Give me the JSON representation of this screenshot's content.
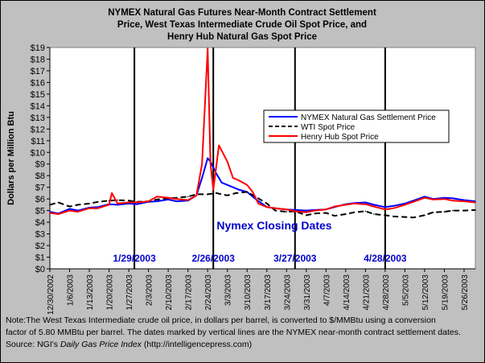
{
  "title_lines": [
    "NYMEX Natural Gas Futures Near-Month Contract Settlement",
    "Price, West Texas Intermediate Crude Oil Spot Price, and",
    "Henry Hub Natural Gas Spot Price"
  ],
  "note": {
    "line1": "Note:The West Texas Intermediate crude oil price, in dollars per barrel,  is converted to $/MMBtu using a conversion",
    "line2": "factor of 5.80 MMBtu per barrel.  The dates marked by vertical lines are the NYMEX near-month contract settlement dates.",
    "line3_prefix": "Source:  NGI's ",
    "line3_italic": "Daily Gas Price Index",
    "line3_suffix": " (http://intelligencepress.com)"
  },
  "colors": {
    "background": "#c0c0c0",
    "plot_bg": "#ffffff",
    "nymex": "#0000ff",
    "wti": "#000000",
    "henry": "#ff0000",
    "annotation": "#0000cc"
  },
  "chart_data": {
    "type": "line",
    "title": "NYMEX Natural Gas Futures Near-Month Contract Settlement Price, West Texas Intermediate Crude Oil Spot Price, and Henry Hub Natural Gas Spot Price",
    "ylabel": "Dollars per Million Btu",
    "xlabel": "",
    "ylim": [
      0,
      19
    ],
    "ytick_labels": [
      "$0",
      "$1",
      "$2",
      "$3",
      "$4",
      "$5",
      "$6",
      "$7",
      "$8",
      "$9",
      "$10",
      "$11",
      "$12",
      "$13",
      "$14",
      "$15",
      "$16",
      "$17",
      "$18",
      "$19"
    ],
    "x_start": "2002-12-30",
    "x_end": "2003-05-30",
    "x_tick_labels": [
      "12/30/2002",
      "1/6/2003",
      "1/13/2003",
      "1/20/2003",
      "1/27/2003",
      "2/3/2003",
      "2/10/2003",
      "2/17/2003",
      "2/24/2003",
      "3/3/2003",
      "3/10/2003",
      "3/17/2003",
      "3/24/2003",
      "3/31/2003",
      "4/7/2003",
      "4/14/2003",
      "4/21/2003",
      "4/28/2003",
      "5/5/2003",
      "5/12/2003",
      "5/19/2003",
      "5/26/2003"
    ],
    "grid": false,
    "legend_position": "top-right",
    "vertical_markers": [
      {
        "date": "2003-01-29",
        "label": "1/29/2003"
      },
      {
        "date": "2003-02-26",
        "label": "2/26/2003"
      },
      {
        "date": "2003-03-27",
        "label": "3/27/2003"
      },
      {
        "date": "2003-04-28",
        "label": "4/28/2003"
      }
    ],
    "annotation": "Nymex Closing Dates",
    "series": [
      {
        "name": "NYMEX Natural Gas Settlement Price",
        "color": "#0000ff",
        "style": "solid",
        "points": [
          [
            "2002-12-30",
            4.9
          ],
          [
            "2003-01-02",
            4.75
          ],
          [
            "2003-01-06",
            5.15
          ],
          [
            "2003-01-09",
            5.0
          ],
          [
            "2003-01-13",
            5.25
          ],
          [
            "2003-01-16",
            5.3
          ],
          [
            "2003-01-20",
            5.55
          ],
          [
            "2003-01-23",
            5.5
          ],
          [
            "2003-01-27",
            5.6
          ],
          [
            "2003-01-30",
            5.55
          ],
          [
            "2003-02-03",
            5.75
          ],
          [
            "2003-02-06",
            5.8
          ],
          [
            "2003-02-10",
            5.95
          ],
          [
            "2003-02-13",
            5.8
          ],
          [
            "2003-02-17",
            5.85
          ],
          [
            "2003-02-20",
            6.3
          ],
          [
            "2003-02-22",
            7.8
          ],
          [
            "2003-02-24",
            9.5
          ],
          [
            "2003-02-25",
            9.2
          ],
          [
            "2003-02-27",
            8.2
          ],
          [
            "2003-03-01",
            7.4
          ],
          [
            "2003-03-04",
            7.1
          ],
          [
            "2003-03-07",
            6.8
          ],
          [
            "2003-03-10",
            6.6
          ],
          [
            "2003-03-13",
            6.0
          ],
          [
            "2003-03-17",
            5.3
          ],
          [
            "2003-03-20",
            5.2
          ],
          [
            "2003-03-24",
            5.1
          ],
          [
            "2003-03-27",
            5.05
          ],
          [
            "2003-03-31",
            5.0
          ],
          [
            "2003-04-03",
            5.05
          ],
          [
            "2003-04-07",
            5.1
          ],
          [
            "2003-04-10",
            5.3
          ],
          [
            "2003-04-14",
            5.55
          ],
          [
            "2003-04-17",
            5.65
          ],
          [
            "2003-04-21",
            5.7
          ],
          [
            "2003-04-24",
            5.5
          ],
          [
            "2003-04-28",
            5.3
          ],
          [
            "2003-05-01",
            5.4
          ],
          [
            "2003-05-05",
            5.6
          ],
          [
            "2003-05-08",
            5.85
          ],
          [
            "2003-05-12",
            6.2
          ],
          [
            "2003-05-15",
            6.0
          ],
          [
            "2003-05-19",
            6.1
          ],
          [
            "2003-05-22",
            6.05
          ],
          [
            "2003-05-26",
            5.9
          ],
          [
            "2003-05-30",
            5.8
          ]
        ]
      },
      {
        "name": "WTI Spot Price",
        "color": "#000000",
        "style": "dashed",
        "points": [
          [
            "2002-12-30",
            5.5
          ],
          [
            "2003-01-02",
            5.7
          ],
          [
            "2003-01-06",
            5.35
          ],
          [
            "2003-01-09",
            5.5
          ],
          [
            "2003-01-13",
            5.6
          ],
          [
            "2003-01-16",
            5.75
          ],
          [
            "2003-01-20",
            5.85
          ],
          [
            "2003-01-23",
            5.9
          ],
          [
            "2003-01-27",
            5.85
          ],
          [
            "2003-01-30",
            5.75
          ],
          [
            "2003-02-03",
            5.8
          ],
          [
            "2003-02-06",
            5.95
          ],
          [
            "2003-02-10",
            6.05
          ],
          [
            "2003-02-13",
            6.1
          ],
          [
            "2003-02-17",
            6.2
          ],
          [
            "2003-02-20",
            6.4
          ],
          [
            "2003-02-24",
            6.4
          ],
          [
            "2003-02-27",
            6.5
          ],
          [
            "2003-03-03",
            6.3
          ],
          [
            "2003-03-06",
            6.5
          ],
          [
            "2003-03-10",
            6.6
          ],
          [
            "2003-03-13",
            6.2
          ],
          [
            "2003-03-17",
            5.6
          ],
          [
            "2003-03-20",
            5.0
          ],
          [
            "2003-03-24",
            4.9
          ],
          [
            "2003-03-27",
            4.95
          ],
          [
            "2003-03-31",
            4.6
          ],
          [
            "2003-04-03",
            4.75
          ],
          [
            "2003-04-07",
            4.8
          ],
          [
            "2003-04-10",
            4.55
          ],
          [
            "2003-04-14",
            4.7
          ],
          [
            "2003-04-17",
            4.85
          ],
          [
            "2003-04-21",
            4.95
          ],
          [
            "2003-04-24",
            4.7
          ],
          [
            "2003-04-28",
            4.6
          ],
          [
            "2003-05-01",
            4.5
          ],
          [
            "2003-05-05",
            4.45
          ],
          [
            "2003-05-08",
            4.4
          ],
          [
            "2003-05-12",
            4.6
          ],
          [
            "2003-05-15",
            4.85
          ],
          [
            "2003-05-19",
            4.9
          ],
          [
            "2003-05-22",
            5.0
          ],
          [
            "2003-05-26",
            5.0
          ],
          [
            "2003-05-30",
            5.05
          ]
        ]
      },
      {
        "name": "Henry Hub Spot Price",
        "color": "#ff0000",
        "style": "solid",
        "points": [
          [
            "2002-12-30",
            4.8
          ],
          [
            "2003-01-02",
            4.7
          ],
          [
            "2003-01-06",
            5.0
          ],
          [
            "2003-01-09",
            4.9
          ],
          [
            "2003-01-13",
            5.2
          ],
          [
            "2003-01-16",
            5.2
          ],
          [
            "2003-01-20",
            5.5
          ],
          [
            "2003-01-21",
            6.5
          ],
          [
            "2003-01-23",
            5.6
          ],
          [
            "2003-01-27",
            5.7
          ],
          [
            "2003-01-30",
            5.7
          ],
          [
            "2003-02-03",
            5.8
          ],
          [
            "2003-02-06",
            6.2
          ],
          [
            "2003-02-10",
            6.1
          ],
          [
            "2003-02-13",
            6.0
          ],
          [
            "2003-02-17",
            5.9
          ],
          [
            "2003-02-20",
            6.3
          ],
          [
            "2003-02-22",
            9.0
          ],
          [
            "2003-02-24",
            18.9
          ],
          [
            "2003-02-25",
            9.0
          ],
          [
            "2003-02-26",
            6.8
          ],
          [
            "2003-02-28",
            10.6
          ],
          [
            "2003-03-03",
            9.2
          ],
          [
            "2003-03-05",
            7.8
          ],
          [
            "2003-03-07",
            7.6
          ],
          [
            "2003-03-10",
            7.2
          ],
          [
            "2003-03-12",
            6.6
          ],
          [
            "2003-03-14",
            5.6
          ],
          [
            "2003-03-17",
            5.3
          ],
          [
            "2003-03-20",
            5.2
          ],
          [
            "2003-03-24",
            5.1
          ],
          [
            "2003-03-27",
            4.95
          ],
          [
            "2003-03-31",
            4.85
          ],
          [
            "2003-04-03",
            5.0
          ],
          [
            "2003-04-07",
            5.1
          ],
          [
            "2003-04-10",
            5.35
          ],
          [
            "2003-04-14",
            5.5
          ],
          [
            "2003-04-17",
            5.6
          ],
          [
            "2003-04-21",
            5.55
          ],
          [
            "2003-04-24",
            5.35
          ],
          [
            "2003-04-28",
            5.1
          ],
          [
            "2003-05-01",
            5.2
          ],
          [
            "2003-05-05",
            5.5
          ],
          [
            "2003-05-08",
            5.75
          ],
          [
            "2003-05-12",
            6.1
          ],
          [
            "2003-05-15",
            5.95
          ],
          [
            "2003-05-19",
            6.0
          ],
          [
            "2003-05-22",
            5.85
          ],
          [
            "2003-05-26",
            5.8
          ],
          [
            "2003-05-30",
            5.7
          ]
        ]
      }
    ]
  }
}
